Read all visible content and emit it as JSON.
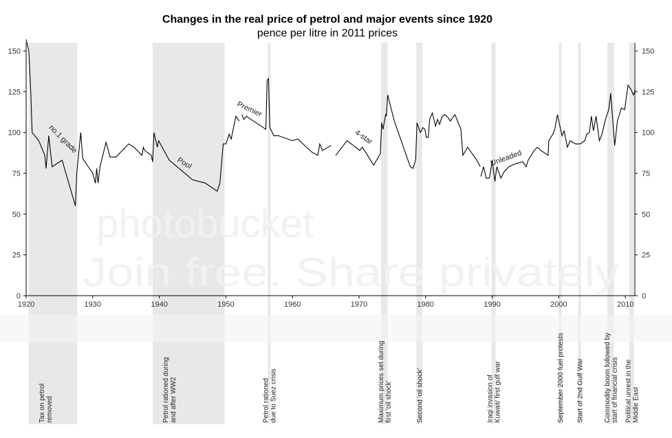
{
  "chart_data": {
    "type": "line",
    "title": "Changes in the real price of petrol and major events since 1920",
    "subtitle": "pence per litre in 2011 prices",
    "xlabel": "",
    "ylabel": "",
    "xlim": [
      1920,
      2012
    ],
    "ylim": [
      0,
      155
    ],
    "x_ticks": [
      1920,
      1930,
      1940,
      1950,
      1960,
      1970,
      1980,
      1990,
      2000,
      2010
    ],
    "y_ticks": [
      0,
      25,
      50,
      75,
      100,
      125,
      150
    ],
    "grid": false,
    "line_color": "#000000",
    "band_color": "#e8e8e8",
    "series": [
      {
        "points": [
          [
            1920,
            157
          ],
          [
            1920.4,
            150
          ],
          [
            1920.7,
            124
          ],
          [
            1920.9,
            100
          ],
          [
            1921.9,
            95
          ],
          [
            1922.8,
            86
          ],
          [
            1923.0,
            78
          ],
          [
            1923.4,
            98
          ],
          [
            1923.9,
            79
          ],
          [
            1925.4,
            83
          ],
          [
            1927.4,
            55
          ],
          [
            1927.6,
            75
          ],
          [
            1928.2,
            100
          ],
          [
            1928.5,
            84
          ],
          [
            1930.0,
            75
          ],
          [
            1930.4,
            69
          ],
          [
            1930.6,
            78
          ],
          [
            1930.8,
            69
          ],
          [
            1931.1,
            79
          ],
          [
            1932.0,
            94
          ],
          [
            1932.6,
            85
          ],
          [
            1933.5,
            85
          ],
          [
            1935.4,
            93
          ],
          [
            1936.2,
            91
          ],
          [
            1937.4,
            86
          ],
          [
            1937.6,
            91
          ],
          [
            1937.8,
            89
          ],
          [
            1938.8,
            86
          ],
          [
            1939.0,
            82
          ],
          [
            1939.2,
            100
          ],
          [
            1939.7,
            91
          ],
          [
            1939.9,
            95
          ],
          [
            1941.5,
            83
          ],
          [
            1945.0,
            71
          ],
          [
            1946.9,
            69
          ],
          [
            1948.7,
            64
          ],
          [
            1949.1,
            69
          ],
          [
            1949.6,
            93
          ],
          [
            1950.0,
            93
          ],
          [
            1950.5,
            99
          ],
          [
            1950.8,
            96
          ],
          [
            1951.5,
            110
          ],
          [
            1952.0,
            107
          ]
        ]
      },
      {
        "points": [
          [
            1952.4,
            111
          ],
          [
            1952.7,
            108
          ],
          [
            1953.1,
            110
          ],
          [
            1953.4,
            109
          ],
          [
            1956.0,
            102
          ],
          [
            1956.2,
            132
          ],
          [
            1956.4,
            133
          ],
          [
            1956.6,
            103
          ],
          [
            1957.2,
            98
          ],
          [
            1957.9,
            98
          ],
          [
            1960.0,
            95
          ],
          [
            1960.8,
            96
          ],
          [
            1962.9,
            88
          ],
          [
            1963.8,
            86
          ],
          [
            1964.1,
            93
          ],
          [
            1964.5,
            89
          ],
          [
            1965.8,
            92
          ]
        ]
      },
      {
        "points": [
          [
            1966.5,
            86
          ],
          [
            1968.2,
            95
          ],
          [
            1970.1,
            89
          ],
          [
            1970.5,
            91
          ],
          [
            1972.2,
            80
          ],
          [
            1973.2,
            87
          ],
          [
            1973.4,
            106
          ],
          [
            1973.6,
            102
          ],
          [
            1974.0,
            111
          ],
          [
            1974.1,
            110
          ],
          [
            1974.3,
            123
          ],
          [
            1975.3,
            107
          ],
          [
            1977.7,
            79
          ],
          [
            1978.1,
            78
          ],
          [
            1978.5,
            83
          ],
          [
            1978.7,
            106
          ],
          [
            1979.2,
            100
          ],
          [
            1979.6,
            103
          ],
          [
            1979.9,
            102
          ],
          [
            1980.1,
            97
          ],
          [
            1980.4,
            97
          ],
          [
            1980.6,
            108
          ],
          [
            1981.0,
            112
          ],
          [
            1981.5,
            104
          ],
          [
            1981.8,
            108
          ],
          [
            1982.1,
            105
          ],
          [
            1982.5,
            110
          ],
          [
            1982.9,
            111
          ],
          [
            1983.4,
            109
          ],
          [
            1983.7,
            107
          ],
          [
            1984.4,
            111
          ],
          [
            1985.3,
            102
          ],
          [
            1985.6,
            86
          ],
          [
            1986.3,
            91
          ],
          [
            1987.7,
            83
          ],
          [
            1988.2,
            79
          ]
        ]
      },
      {
        "points": [
          [
            1988.3,
            73
          ],
          [
            1988.7,
            79
          ],
          [
            1989.1,
            72
          ],
          [
            1989.6,
            72
          ],
          [
            1990.0,
            83
          ],
          [
            1990.4,
            70
          ],
          [
            1990.7,
            79
          ],
          [
            1991.3,
            72
          ],
          [
            1991.8,
            76
          ],
          [
            1992.5,
            79
          ],
          [
            1993.6,
            81
          ],
          [
            1994.6,
            82
          ],
          [
            1995.1,
            79
          ],
          [
            1995.4,
            83
          ],
          [
            1996.3,
            89
          ],
          [
            1996.8,
            91
          ],
          [
            1997.3,
            89
          ],
          [
            1998.4,
            86
          ],
          [
            1998.5,
            95
          ],
          [
            1999.1,
            99
          ],
          [
            1999.4,
            102
          ],
          [
            1999.8,
            111
          ],
          [
            2000.1,
            105
          ],
          [
            2000.5,
            98
          ],
          [
            2000.8,
            101
          ],
          [
            2001.3,
            91
          ],
          [
            2001.7,
            95
          ],
          [
            2002.5,
            93
          ],
          [
            2003.2,
            93
          ],
          [
            2003.9,
            95
          ],
          [
            2004.2,
            99
          ],
          [
            2004.6,
            100
          ],
          [
            2004.9,
            110
          ],
          [
            2005.2,
            101
          ],
          [
            2005.6,
            110
          ],
          [
            2006.1,
            95
          ],
          [
            2006.5,
            99
          ],
          [
            2007.0,
            108
          ],
          [
            2007.5,
            114
          ],
          [
            2007.8,
            124
          ],
          [
            2008.4,
            92
          ],
          [
            2008.8,
            107
          ],
          [
            2009.4,
            115
          ],
          [
            2009.9,
            114
          ],
          [
            2010.4,
            129
          ],
          [
            2010.9,
            126
          ],
          [
            2011.2,
            123
          ],
          [
            2011.5,
            126
          ]
        ]
      }
    ],
    "annotations": [
      {
        "text": "no.1 grade",
        "x": 1925.3,
        "y": 95
      },
      {
        "text": "Pool",
        "x": 1943.6,
        "y": 80
      },
      {
        "text": "Premier",
        "x": 1953.4,
        "y": 113
      },
      {
        "text": "4-star",
        "x": 1970.5,
        "y": 96
      },
      {
        "text": "Unleaded",
        "x": 1992.2,
        "y": 83
      }
    ],
    "events": [
      {
        "start": 1920.4,
        "end": 1927.7,
        "lines": [
          "Tax on petrol",
          "removed"
        ]
      },
      {
        "start": 1939.0,
        "end": 1949.8,
        "lines": [
          "Petrol rationed during",
          "and after WW2"
        ]
      },
      {
        "start": 1956.3,
        "end": 1956.7,
        "lines": [
          "Petrol rationed",
          "due to Suez crisis"
        ]
      },
      {
        "start": 1973.3,
        "end": 1974.3,
        "lines": [
          "Maximum prices set during",
          "first 'oil shock'"
        ]
      },
      {
        "start": 1978.6,
        "end": 1979.5,
        "lines": [
          "Second 'oil shock'"
        ]
      },
      {
        "start": 1989.9,
        "end": 1990.5,
        "lines": [
          "Iraqi invasion of",
          "Kuwait/ first gulf war"
        ]
      },
      {
        "start": 2000.0,
        "end": 2000.3,
        "lines": [
          "September 2000 fuel protests"
        ]
      },
      {
        "start": 2002.9,
        "end": 2003.3,
        "lines": [
          "Start of 2nd Gulf War"
        ]
      },
      {
        "start": 2007.3,
        "end": 2008.3,
        "lines": [
          "Commodity boom followed by",
          "start of financial crisis"
        ]
      },
      {
        "start": 2010.6,
        "end": 2011.3,
        "lines": [
          "Political unrest in the",
          "Middle East"
        ]
      }
    ]
  },
  "watermark": {
    "logo_text": "photobucket",
    "tagline": "Join free. Share privately"
  }
}
